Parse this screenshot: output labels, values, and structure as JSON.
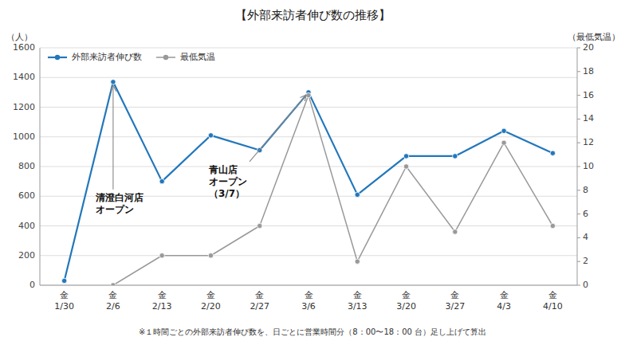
{
  "chart_data": {
    "type": "line",
    "title": "【外部来訪者伸び数の推移】",
    "ylabel": "（人）",
    "y2label": "（最低気温）",
    "footnote": "※１時間ごとの外部来訪者伸び数を、日ごとに営業時間分（8：00〜18：00 台）足し上げて算出",
    "categories": [
      "金\n1/30",
      "金\n2/6",
      "金\n2/13",
      "金\n2/20",
      "金\n2/27",
      "金\n3/6",
      "金\n3/13",
      "金\n3/20",
      "金\n3/27",
      "金\n4/3",
      "金\n4/10"
    ],
    "series": [
      {
        "name": "外部来訪者伸び数",
        "color": "#2277BB",
        "marker": "circle",
        "values": [
          30,
          1370,
          700,
          1010,
          910,
          1300,
          610,
          870,
          870,
          1040,
          890
        ]
      },
      {
        "name": "最低気温",
        "color": "#999999",
        "marker": "circle",
        "axis": "y2",
        "values": [
          null,
          0,
          2.5,
          2.5,
          5,
          16,
          2,
          10,
          4.5,
          12,
          5
        ]
      }
    ],
    "ylim": [
      0,
      1600
    ],
    "yticks": [
      0,
      200,
      400,
      600,
      800,
      1000,
      1200,
      1400,
      1600
    ],
    "y2lim": [
      0,
      20
    ],
    "y2ticks": [
      0,
      2,
      4,
      6,
      8,
      10,
      12,
      14,
      16,
      18,
      20
    ],
    "grid": true,
    "legend": "upper left",
    "annotations": [
      {
        "text": "清澄白河店\nオープン",
        "x": "金\n2/6",
        "y": 1370
      },
      {
        "text": "青山店\nオープン\n（3/7）",
        "x": "金\n3/6",
        "y": 1300
      }
    ]
  }
}
